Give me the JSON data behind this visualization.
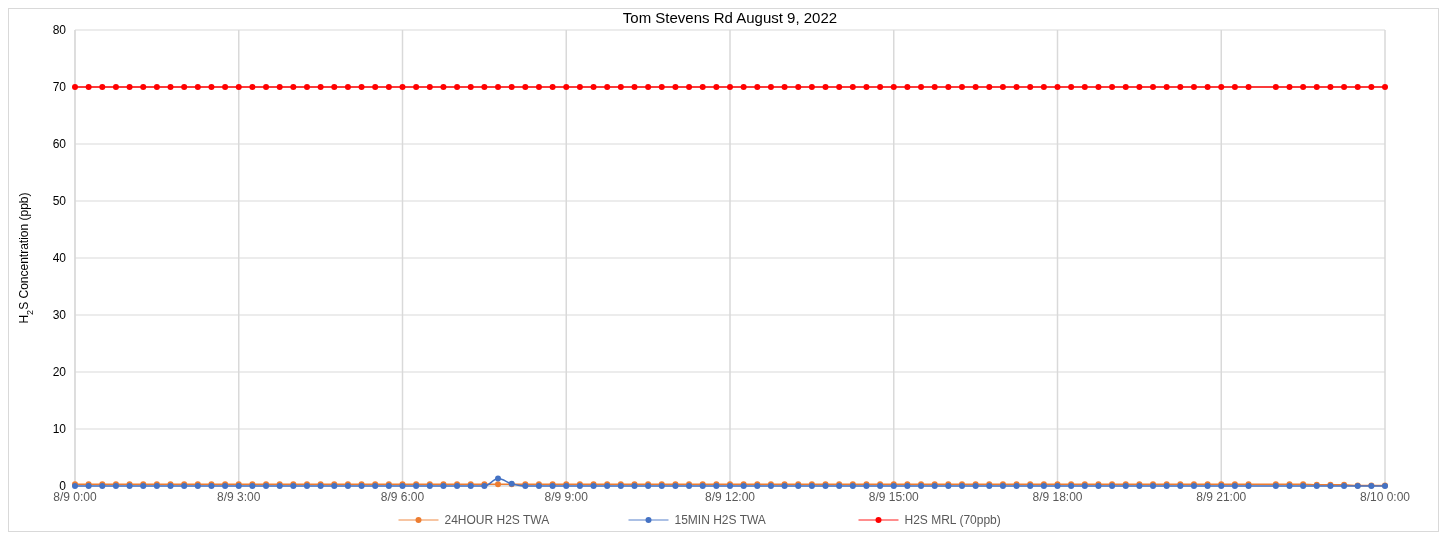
{
  "chart_data": {
    "type": "line",
    "title": "Tom Stevens Rd  August 9, 2022",
    "ylabel": "H$_{2}$S Concentration (ppb)",
    "x": [
      "2022-08-09T00:00",
      "2022-08-09T00:15",
      "2022-08-09T00:30",
      "2022-08-09T00:45",
      "2022-08-09T01:00",
      "2022-08-09T01:15",
      "2022-08-09T01:30",
      "2022-08-09T01:45",
      "2022-08-09T02:00",
      "2022-08-09T02:15",
      "2022-08-09T02:30",
      "2022-08-09T02:45",
      "2022-08-09T03:00",
      "2022-08-09T03:15",
      "2022-08-09T03:30",
      "2022-08-09T03:45",
      "2022-08-09T04:00",
      "2022-08-09T04:15",
      "2022-08-09T04:30",
      "2022-08-09T04:45",
      "2022-08-09T05:00",
      "2022-08-09T05:15",
      "2022-08-09T05:30",
      "2022-08-09T05:45",
      "2022-08-09T06:00",
      "2022-08-09T06:15",
      "2022-08-09T06:30",
      "2022-08-09T06:45",
      "2022-08-09T07:00",
      "2022-08-09T07:15",
      "2022-08-09T07:30",
      "2022-08-09T07:45",
      "2022-08-09T08:00",
      "2022-08-09T08:15",
      "2022-08-09T08:30",
      "2022-08-09T08:45",
      "2022-08-09T09:00",
      "2022-08-09T09:15",
      "2022-08-09T09:30",
      "2022-08-09T09:45",
      "2022-08-09T10:00",
      "2022-08-09T10:15",
      "2022-08-09T10:30",
      "2022-08-09T10:45",
      "2022-08-09T11:00",
      "2022-08-09T11:15",
      "2022-08-09T11:30",
      "2022-08-09T11:45",
      "2022-08-09T12:00",
      "2022-08-09T12:15",
      "2022-08-09T12:30",
      "2022-08-09T12:45",
      "2022-08-09T13:00",
      "2022-08-09T13:15",
      "2022-08-09T13:30",
      "2022-08-09T13:45",
      "2022-08-09T14:00",
      "2022-08-09T14:15",
      "2022-08-09T14:30",
      "2022-08-09T14:45",
      "2022-08-09T15:00",
      "2022-08-09T15:15",
      "2022-08-09T15:30",
      "2022-08-09T15:45",
      "2022-08-09T16:00",
      "2022-08-09T16:15",
      "2022-08-09T16:30",
      "2022-08-09T16:45",
      "2022-08-09T17:00",
      "2022-08-09T17:15",
      "2022-08-09T17:30",
      "2022-08-09T17:45",
      "2022-08-09T18:00",
      "2022-08-09T18:15",
      "2022-08-09T18:30",
      "2022-08-09T18:45",
      "2022-08-09T19:00",
      "2022-08-09T19:15",
      "2022-08-09T19:30",
      "2022-08-09T19:45",
      "2022-08-09T20:00",
      "2022-08-09T20:15",
      "2022-08-09T20:30",
      "2022-08-09T20:45",
      "2022-08-09T21:00",
      "2022-08-09T21:15",
      "2022-08-09T21:30",
      "2022-08-09T22:00",
      "2022-08-09T22:15",
      "2022-08-09T22:30",
      "2022-08-09T22:45",
      "2022-08-09T23:00",
      "2022-08-09T23:15",
      "2022-08-09T23:30",
      "2022-08-09T23:45",
      "2022-08-10T00:00"
    ],
    "series": [
      {
        "name": "24HOUR H2S TWA",
        "color": "#ed7d31",
        "values": [
          0.3,
          0.3,
          0.3,
          0.3,
          0.3,
          0.3,
          0.3,
          0.3,
          0.3,
          0.3,
          0.3,
          0.3,
          0.3,
          0.3,
          0.3,
          0.3,
          0.3,
          0.3,
          0.3,
          0.3,
          0.3,
          0.3,
          0.3,
          0.3,
          0.3,
          0.3,
          0.3,
          0.3,
          0.3,
          0.3,
          0.3,
          0.3,
          0.3,
          0.3,
          0.3,
          0.3,
          0.3,
          0.3,
          0.3,
          0.3,
          0.3,
          0.3,
          0.3,
          0.3,
          0.3,
          0.3,
          0.3,
          0.3,
          0.3,
          0.3,
          0.3,
          0.3,
          0.3,
          0.3,
          0.3,
          0.3,
          0.3,
          0.3,
          0.3,
          0.3,
          0.3,
          0.3,
          0.3,
          0.3,
          0.3,
          0.3,
          0.3,
          0.3,
          0.3,
          0.3,
          0.3,
          0.3,
          0.3,
          0.3,
          0.3,
          0.3,
          0.3,
          0.3,
          0.3,
          0.3,
          0.3,
          0.3,
          0.3,
          0.3,
          0.3,
          0.3,
          0.3,
          0.3,
          0.3,
          0.3,
          0.2,
          0.2,
          0.2,
          0.1,
          0.1,
          0.1
        ]
      },
      {
        "name": "15MIN H2S TWA",
        "color": "#4472c4",
        "values": [
          0,
          0,
          0,
          0,
          0,
          0,
          0,
          0,
          0,
          0,
          0,
          0,
          0,
          0,
          0,
          0,
          0,
          0,
          0,
          0,
          0,
          0,
          0,
          0,
          0,
          0,
          0,
          0,
          0,
          0,
          0,
          1.3,
          0.4,
          0,
          0,
          0,
          0,
          0,
          0,
          0,
          0,
          0,
          0,
          0,
          0,
          0,
          0,
          0,
          0,
          0,
          0,
          0,
          0,
          0,
          0,
          0,
          0,
          0,
          0,
          0,
          0,
          0,
          0,
          0,
          0,
          0,
          0,
          0,
          0,
          0,
          0,
          0,
          0,
          0,
          0,
          0,
          0,
          0,
          0,
          0,
          0,
          0,
          0,
          0,
          0,
          0,
          0,
          0,
          0,
          0,
          0,
          0,
          0,
          0,
          0,
          0
        ]
      },
      {
        "name": "H2S MRL (70ppb)",
        "color": "#ff0000",
        "values": [
          70,
          70,
          70,
          70,
          70,
          70,
          70,
          70,
          70,
          70,
          70,
          70,
          70,
          70,
          70,
          70,
          70,
          70,
          70,
          70,
          70,
          70,
          70,
          70,
          70,
          70,
          70,
          70,
          70,
          70,
          70,
          70,
          70,
          70,
          70,
          70,
          70,
          70,
          70,
          70,
          70,
          70,
          70,
          70,
          70,
          70,
          70,
          70,
          70,
          70,
          70,
          70,
          70,
          70,
          70,
          70,
          70,
          70,
          70,
          70,
          70,
          70,
          70,
          70,
          70,
          70,
          70,
          70,
          70,
          70,
          70,
          70,
          70,
          70,
          70,
          70,
          70,
          70,
          70,
          70,
          70,
          70,
          70,
          70,
          70,
          70,
          70,
          70,
          70,
          70,
          70,
          70,
          70,
          70,
          70,
          70
        ]
      }
    ],
    "xlim": [
      "2022-08-09T00:00",
      "2022-08-10T00:00"
    ],
    "xticks": [
      {
        "value": "2022-08-09T00:00",
        "label": "8/9 0:00"
      },
      {
        "value": "2022-08-09T03:00",
        "label": "8/9 3:00"
      },
      {
        "value": "2022-08-09T06:00",
        "label": "8/9 6:00"
      },
      {
        "value": "2022-08-09T09:00",
        "label": "8/9 9:00"
      },
      {
        "value": "2022-08-09T12:00",
        "label": "8/9 12:00"
      },
      {
        "value": "2022-08-09T15:00",
        "label": "8/9 15:00"
      },
      {
        "value": "2022-08-09T18:00",
        "label": "8/9 18:00"
      },
      {
        "value": "2022-08-09T21:00",
        "label": "8/9 21:00"
      },
      {
        "value": "2022-08-10T00:00",
        "label": "8/10 0:00"
      }
    ],
    "ylim": [
      0,
      80
    ],
    "yticks": [
      0,
      10,
      20,
      30,
      40,
      50,
      60,
      70,
      80
    ],
    "grid": true,
    "legend": "bottom",
    "marker": "circle",
    "line_style": "solid"
  }
}
